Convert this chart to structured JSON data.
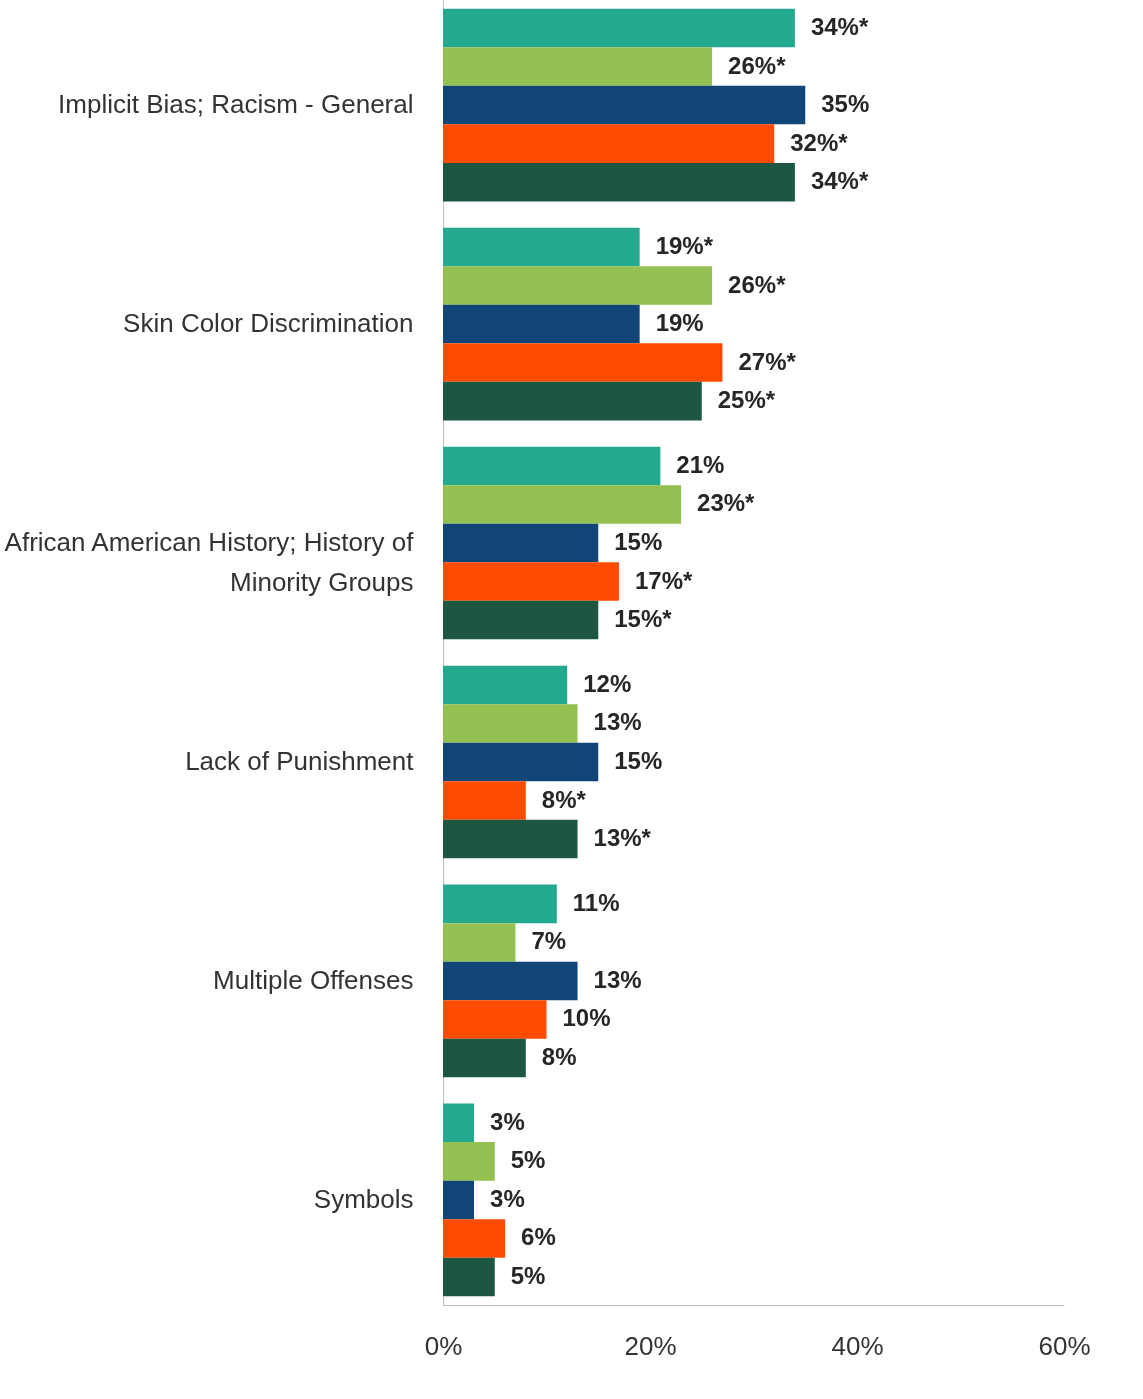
{
  "chart_data": {
    "type": "bar",
    "orientation": "horizontal",
    "categories": [
      "Implicit Bias; Racism - General",
      "Skin Color Discrimination",
      "African American History; History of Minority Groups",
      "Lack of Punishment",
      "Multiple Offenses",
      "Symbols"
    ],
    "series": [
      {
        "color": "#24a88e",
        "values": [
          34,
          19,
          21,
          12,
          11,
          3
        ],
        "value_labels": [
          "34%*",
          "19%*",
          "21%",
          "12%",
          "11%",
          "3%"
        ]
      },
      {
        "color": "#93c050",
        "values": [
          26,
          26,
          23,
          13,
          7,
          5
        ],
        "value_labels": [
          "26%*",
          "26%*",
          "23%*",
          "13%",
          "7%",
          "5%"
        ]
      },
      {
        "color": "#124577",
        "values": [
          35,
          19,
          15,
          15,
          13,
          3
        ],
        "value_labels": [
          "35%",
          "19%",
          "15%",
          "15%",
          "13%",
          "3%"
        ]
      },
      {
        "color": "#ff4b00",
        "values": [
          32,
          27,
          17,
          8,
          10,
          6
        ],
        "value_labels": [
          "32%*",
          "27%*",
          "17%*",
          "8%*",
          "10%",
          "6%"
        ]
      },
      {
        "color": "#1e5741",
        "values": [
          34,
          25,
          15,
          13,
          8,
          5
        ],
        "value_labels": [
          "34%*",
          "25%*",
          "15%*",
          "13%*",
          "8%",
          "5%"
        ]
      }
    ],
    "xlim": [
      0,
      60
    ],
    "xticks": [
      {
        "value": 0,
        "label": "0%"
      },
      {
        "value": 20,
        "label": "20%"
      },
      {
        "value": 40,
        "label": "40%"
      },
      {
        "value": 60,
        "label": "60%"
      }
    ],
    "legend": false
  }
}
